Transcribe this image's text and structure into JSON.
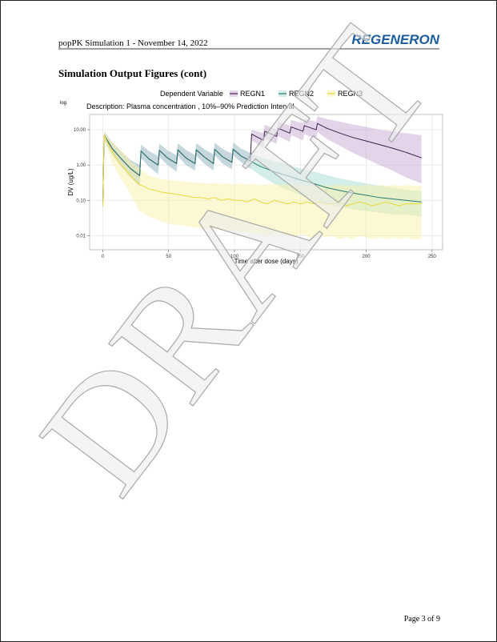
{
  "header": {
    "title": "popPK Simulation 1 - November 14, 2022",
    "logo": "REGENERON"
  },
  "section_title": "Simulation Output Figures (cont)",
  "watermark": "DRAFT",
  "footer": {
    "page": "Page 3 of  9"
  },
  "chart_data": {
    "type": "line",
    "legend_title": "Dependent Variable",
    "scale_note": "log",
    "subtitle": "Description:  Plasma concentration , 10%–90% Prediction Interval",
    "x_label": "Time after dose (days)",
    "y_label": "DV (ug/L)",
    "log_y": true,
    "grid": true,
    "xlim": [
      -10,
      258
    ],
    "ylim": [
      0.004,
      27
    ],
    "xticks": [
      0,
      50,
      100,
      150,
      200,
      250
    ],
    "yticks": [
      {
        "value": 10,
        "label": "10.00"
      },
      {
        "value": 1,
        "label": "1.00"
      },
      {
        "value": 0.1,
        "label": "0.10"
      },
      {
        "value": 0.01,
        "label": "0.01"
      }
    ],
    "series": [
      {
        "name": "REGN1",
        "color": "#3d1f4f",
        "band_color": "#c9a9d4",
        "x": [
          0,
          1,
          7,
          14,
          21,
          28,
          29,
          35,
          42,
          43,
          49,
          56,
          57,
          63,
          70,
          71,
          77,
          84,
          85,
          91,
          98,
          99,
          105,
          112,
          113,
          122,
          123,
          132,
          133,
          142,
          143,
          152,
          153,
          162,
          163,
          170,
          180,
          190,
          200,
          210,
          220,
          230,
          242
        ],
        "values": [
          0.07,
          7,
          3,
          1.5,
          0.8,
          0.5,
          2.5,
          1.5,
          1.0,
          2.6,
          1.6,
          1.1,
          2.7,
          1.6,
          1.1,
          2.7,
          1.7,
          1.1,
          2.8,
          1.7,
          1.2,
          2.8,
          1.8,
          1.3,
          7.5,
          5,
          9,
          6.5,
          11,
          8,
          12,
          9,
          13,
          10,
          15,
          11,
          8,
          6,
          4.8,
          3.8,
          3,
          2.3,
          1.6
        ],
        "lower": [
          0.05,
          5,
          2,
          0.9,
          0.45,
          0.25,
          1.6,
          0.9,
          0.55,
          1.7,
          1.0,
          0.65,
          1.8,
          1.0,
          0.7,
          1.8,
          1.1,
          0.7,
          1.9,
          1.1,
          0.75,
          1.9,
          1.2,
          0.8,
          5,
          3,
          5.5,
          4,
          6.5,
          4.5,
          7,
          5,
          7.5,
          5.5,
          8.5,
          5.5,
          3.5,
          2.2,
          1.5,
          1.0,
          0.7,
          0.45,
          0.3
        ],
        "upper": [
          0.1,
          9,
          4.5,
          2.4,
          1.4,
          1,
          3.8,
          2.5,
          1.8,
          4,
          2.6,
          1.9,
          4.1,
          2.7,
          1.9,
          4.2,
          2.8,
          2,
          4.3,
          2.8,
          2.1,
          4.3,
          2.9,
          2.2,
          10,
          8,
          14,
          10,
          17,
          13,
          19,
          15,
          20,
          17,
          24,
          20,
          17,
          14,
          12,
          10,
          9,
          8,
          7
        ]
      },
      {
        "name": "REGN2",
        "color": "#2b7a6e",
        "band_color": "#a8dcd4",
        "x": [
          0,
          1,
          7,
          14,
          21,
          28,
          29,
          35,
          42,
          43,
          49,
          56,
          57,
          63,
          70,
          71,
          77,
          84,
          85,
          91,
          98,
          99,
          105,
          112,
          120,
          130,
          140,
          150,
          160,
          170,
          180,
          190,
          200,
          210,
          220,
          230,
          242
        ],
        "values": [
          0.07,
          7,
          3,
          1.5,
          0.8,
          0.5,
          2.5,
          1.5,
          1.0,
          2.6,
          1.6,
          1.1,
          2.7,
          1.6,
          1.1,
          2.7,
          1.7,
          1.1,
          2.8,
          1.7,
          1.2,
          2.8,
          1.8,
          1.3,
          0.9,
          0.65,
          0.5,
          0.38,
          0.3,
          0.23,
          0.19,
          0.16,
          0.14,
          0.12,
          0.11,
          0.1,
          0.09
        ],
        "lower": [
          0.05,
          5,
          2,
          0.9,
          0.45,
          0.25,
          1.6,
          0.9,
          0.55,
          1.7,
          1.0,
          0.65,
          1.8,
          1.0,
          0.7,
          1.8,
          1.1,
          0.7,
          1.9,
          1.1,
          0.75,
          1.9,
          1.2,
          0.8,
          0.5,
          0.3,
          0.2,
          0.14,
          0.1,
          0.08,
          0.065,
          0.055,
          0.05,
          0.045,
          0.04,
          0.04,
          0.035
        ],
        "upper": [
          0.1,
          9,
          4.5,
          2.4,
          1.4,
          1,
          3.8,
          2.5,
          1.8,
          4,
          2.6,
          1.9,
          4.1,
          2.7,
          1.9,
          4.2,
          2.8,
          2,
          4.3,
          2.8,
          2.1,
          4.3,
          2.9,
          2.2,
          1.6,
          1.3,
          1.05,
          0.8,
          0.65,
          0.52,
          0.42,
          0.35,
          0.3,
          0.26,
          0.23,
          0.2,
          0.18
        ]
      },
      {
        "name": "REGN3",
        "color": "#e8d93a",
        "band_color": "#f8f1a8",
        "x": [
          0,
          1,
          4,
          7,
          10,
          14,
          18,
          21,
          25,
          28,
          32,
          35,
          40,
          45,
          50,
          55,
          60,
          65,
          70,
          75,
          80,
          85,
          90,
          95,
          100,
          105,
          110,
          115,
          120,
          125,
          130,
          135,
          140,
          145,
          150,
          155,
          160,
          165,
          170,
          175,
          180,
          185,
          190,
          195,
          200,
          205,
          210,
          215,
          220,
          225,
          230,
          235,
          242
        ],
        "values": [
          0.07,
          7,
          4,
          2.5,
          1.6,
          1,
          0.7,
          0.5,
          0.35,
          0.28,
          0.24,
          0.21,
          0.19,
          0.17,
          0.16,
          0.15,
          0.14,
          0.13,
          0.12,
          0.12,
          0.11,
          0.12,
          0.1,
          0.11,
          0.1,
          0.1,
          0.09,
          0.11,
          0.09,
          0.08,
          0.1,
          0.09,
          0.08,
          0.09,
          0.08,
          0.09,
          0.08,
          0.09,
          0.08,
          0.08,
          0.09,
          0.07,
          0.08,
          0.09,
          0.08,
          0.07,
          0.08,
          0.09,
          0.08,
          0.07,
          0.08,
          0.08,
          0.08
        ],
        "lower": [
          0.05,
          5,
          2.5,
          1.2,
          0.7,
          0.4,
          0.25,
          0.15,
          0.08,
          0.05,
          0.04,
          0.035,
          0.03,
          0.025,
          0.022,
          0.02,
          0.02,
          0.018,
          0.017,
          0.016,
          0.015,
          0.016,
          0.014,
          0.013,
          0.014,
          0.012,
          0.013,
          0.011,
          0.012,
          0.01,
          0.012,
          0.011,
          0.01,
          0.009,
          0.011,
          0.01,
          0.008,
          0.01,
          0.009,
          0.01,
          0.008,
          0.009,
          0.008,
          0.01,
          0.009,
          0.008,
          0.009,
          0.008,
          0.009,
          0.008,
          0.009,
          0.008,
          0.008
        ],
        "upper": [
          0.1,
          9,
          6,
          4.5,
          3.5,
          2.5,
          1.8,
          1.3,
          1,
          0.8,
          0.6,
          0.5,
          0.45,
          0.4,
          0.38,
          0.36,
          0.35,
          0.33,
          0.32,
          0.31,
          0.3,
          0.31,
          0.29,
          0.3,
          0.28,
          0.3,
          0.28,
          0.29,
          0.27,
          0.28,
          0.29,
          0.27,
          0.28,
          0.27,
          0.28,
          0.26,
          0.27,
          0.28,
          0.26,
          0.27,
          0.28,
          0.26,
          0.27,
          0.26,
          0.28,
          0.26,
          0.27,
          0.26,
          0.27,
          0.26,
          0.27,
          0.26,
          0.26
        ]
      }
    ]
  }
}
